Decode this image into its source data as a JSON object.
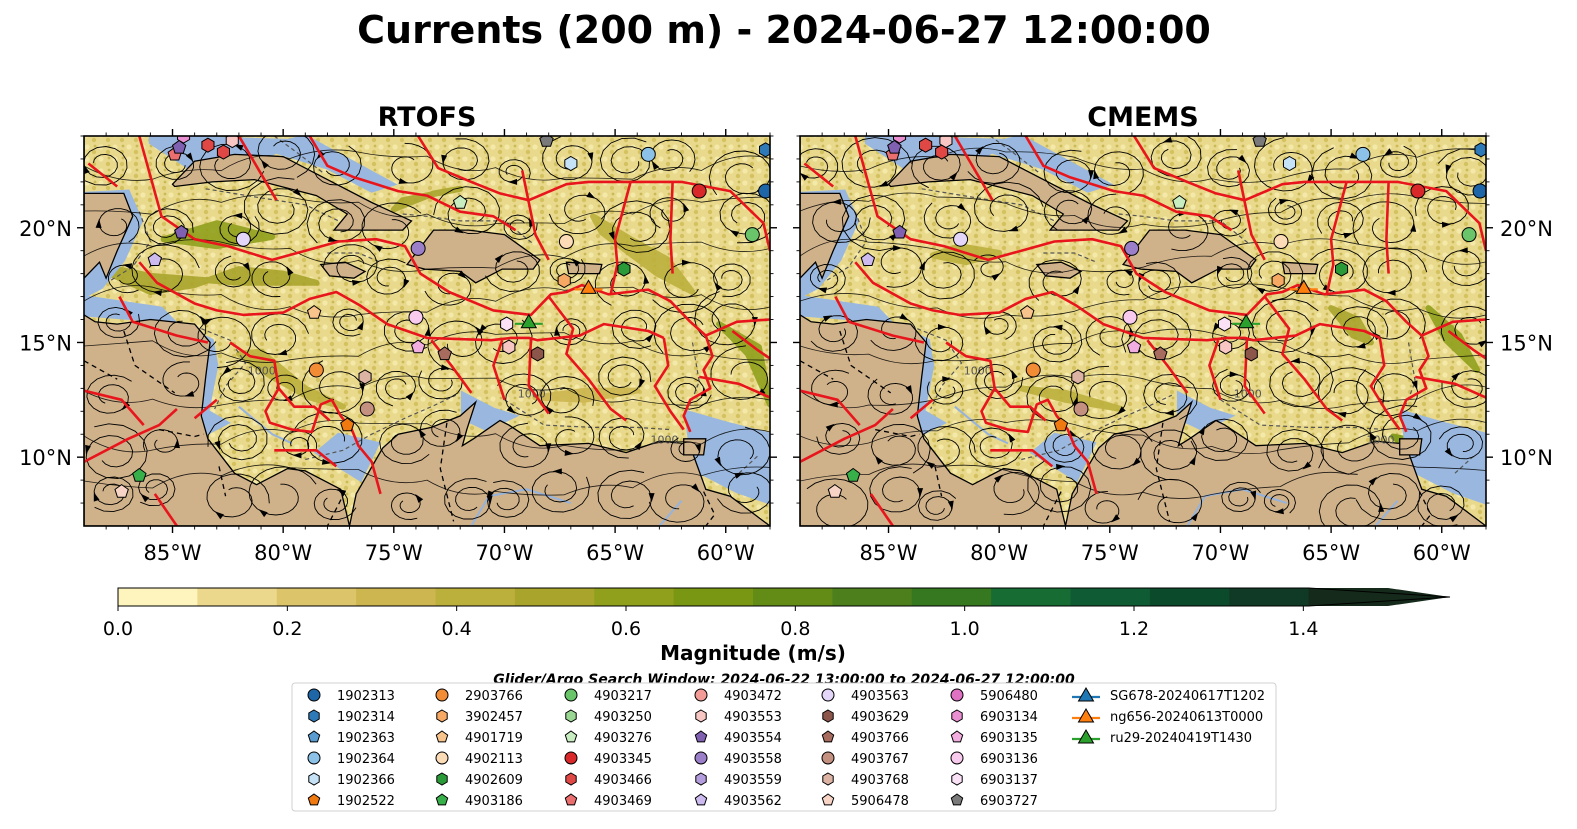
{
  "figure": {
    "title": "Currents (200 m) - 2024-06-27 12:00:00",
    "search_window": "Glider/Argo Search Window: 2024-06-22 13:00:00 to 2024-06-27 12:00:00"
  },
  "chart_data": [
    {
      "type": "heatmap",
      "title": "RTOFS",
      "variable": "current speed at 200 m",
      "xlim": [
        -89,
        -58
      ],
      "ylim": [
        7,
        24
      ],
      "x_ticks": [
        "85°W",
        "80°W",
        "75°W",
        "70°W",
        "65°W",
        "60°W"
      ],
      "y_ticks": [
        "20°N",
        "15°N",
        "10°N"
      ],
      "overlays": [
        "streamlines",
        "EEZ boundaries (red)",
        "1000 m isobath (dashed)"
      ],
      "isobath_label": "1000"
    },
    {
      "type": "heatmap",
      "title": "CMEMS",
      "variable": "current speed at 200 m",
      "xlim": [
        -89,
        -58
      ],
      "ylim": [
        7,
        24
      ],
      "x_ticks": [
        "85°W",
        "80°W",
        "75°W",
        "70°W",
        "65°W",
        "60°W"
      ],
      "y_ticks": [
        "20°N",
        "15°N",
        "10°N"
      ],
      "overlays": [
        "streamlines",
        "EEZ boundaries (red)",
        "1000 m isobath (dashed)"
      ],
      "isobath_label": "1000"
    }
  ],
  "colorbar": {
    "label": "Magnitude (m/s)",
    "min": 0.0,
    "max": 1.5,
    "step": 0.1,
    "extend": "max",
    "ticks": [
      "0.0",
      "0.2",
      "0.4",
      "0.6",
      "0.8",
      "1.0",
      "1.2",
      "1.4"
    ],
    "tick_values": [
      0.0,
      0.2,
      0.4,
      0.6,
      0.8,
      1.0,
      1.2,
      1.4
    ],
    "colors": [
      "#fdf5bd",
      "#ecd88c",
      "#dcc46a",
      "#cdb650",
      "#bcb03d",
      "#a9a52c",
      "#90a01d",
      "#7a9714",
      "#638c16",
      "#4d801c",
      "#367820",
      "#166c33",
      "#0f5b33",
      "#0c4a2c",
      "#103a25",
      "#152a1b"
    ]
  },
  "legend": [
    {
      "label": "1902313",
      "marker": "circle",
      "color": "#1f66a8"
    },
    {
      "label": "1902314",
      "marker": "hexagon",
      "color": "#2e7ab8"
    },
    {
      "label": "1902363",
      "marker": "pentagon",
      "color": "#5a9bd0"
    },
    {
      "label": "1902364",
      "marker": "circle",
      "color": "#8cc1e8"
    },
    {
      "label": "1902366",
      "marker": "hexagon",
      "color": "#c6e2f7"
    },
    {
      "label": "1902522",
      "marker": "pentagon",
      "color": "#f07a10"
    },
    {
      "label": "2903766",
      "marker": "circle",
      "color": "#f28d35"
    },
    {
      "label": "3902457",
      "marker": "hexagon",
      "color": "#f7a863"
    },
    {
      "label": "4901719",
      "marker": "pentagon",
      "color": "#f9c48c"
    },
    {
      "label": "4902113",
      "marker": "circle",
      "color": "#fbdcb7"
    },
    {
      "label": "4902609",
      "marker": "hexagon",
      "color": "#2a9a38"
    },
    {
      "label": "4903186",
      "marker": "pentagon",
      "color": "#38b04a"
    },
    {
      "label": "4903217",
      "marker": "circle",
      "color": "#69c46a"
    },
    {
      "label": "4903250",
      "marker": "hexagon",
      "color": "#9ad793"
    },
    {
      "label": "4903276",
      "marker": "pentagon",
      "color": "#c8edc1"
    },
    {
      "label": "4903345",
      "marker": "circle",
      "color": "#d8282a"
    },
    {
      "label": "4903466",
      "marker": "hexagon",
      "color": "#e04846"
    },
    {
      "label": "4903469",
      "marker": "pentagon",
      "color": "#ec6f70"
    },
    {
      "label": "4903472",
      "marker": "circle",
      "color": "#f29b97"
    },
    {
      "label": "4903553",
      "marker": "hexagon",
      "color": "#f8c6c3"
    },
    {
      "label": "4903554",
      "marker": "pentagon",
      "color": "#8060b0"
    },
    {
      "label": "4903558",
      "marker": "circle",
      "color": "#9b7fc8"
    },
    {
      "label": "4903559",
      "marker": "hexagon",
      "color": "#b49ddc"
    },
    {
      "label": "4903562",
      "marker": "pentagon",
      "color": "#cdbbef"
    },
    {
      "label": "4903563",
      "marker": "circle",
      "color": "#e4d6f8"
    },
    {
      "label": "4903629",
      "marker": "hexagon",
      "color": "#8c564b"
    },
    {
      "label": "4903766",
      "marker": "pentagon",
      "color": "#a86c5e"
    },
    {
      "label": "4903767",
      "marker": "circle",
      "color": "#c4907f"
    },
    {
      "label": "4903768",
      "marker": "hexagon",
      "color": "#ddb3a4"
    },
    {
      "label": "5906478",
      "marker": "pentagon",
      "color": "#f7d4c6"
    },
    {
      "label": "5906480",
      "marker": "circle",
      "color": "#e072c3"
    },
    {
      "label": "6903134",
      "marker": "hexagon",
      "color": "#ea8fd2"
    },
    {
      "label": "6903135",
      "marker": "pentagon",
      "color": "#f2aee0"
    },
    {
      "label": "6903136",
      "marker": "circle",
      "color": "#f8cbee"
    },
    {
      "label": "6903137",
      "marker": "hexagon",
      "color": "#fbe1f6"
    },
    {
      "label": "6903727",
      "marker": "pentagon",
      "color": "#7a7a7a"
    },
    {
      "label": "SG678-20240617T1202",
      "marker": "triangle-line",
      "color": "#1f77b4"
    },
    {
      "label": "ng656-20240613T0000",
      "marker": "triangle-line",
      "color": "#ff7f0e"
    },
    {
      "label": "ru29-20240419T1430",
      "marker": "triangle-line",
      "color": "#2ca02c"
    }
  ],
  "markers_on_map": [
    {
      "id": "1902313",
      "lon": -58.2,
      "lat": 21.6
    },
    {
      "id": "1902314",
      "lon": -58.2,
      "lat": 23.4
    },
    {
      "id": "1902364",
      "lon": -63.5,
      "lat": 23.2
    },
    {
      "id": "1902366",
      "lon": -67.0,
      "lat": 22.8
    },
    {
      "id": "4903217",
      "lon": -58.8,
      "lat": 19.7
    },
    {
      "id": "4903345",
      "lon": -61.2,
      "lat": 21.6
    },
    {
      "id": "4903563",
      "lon": -81.8,
      "lat": 19.5
    },
    {
      "id": "4903558",
      "lon": -73.9,
      "lat": 19.1
    },
    {
      "id": "4903554",
      "lon": -84.6,
      "lat": 19.8
    },
    {
      "id": "4903562",
      "lon": -85.8,
      "lat": 18.6
    },
    {
      "id": "4902113",
      "lon": -67.2,
      "lat": 19.4
    },
    {
      "id": "4902609",
      "lon": -64.6,
      "lat": 18.2
    },
    {
      "id": "2903766",
      "lon": -78.5,
      "lat": 13.8
    },
    {
      "id": "1902522",
      "lon": -77.1,
      "lat": 11.4
    },
    {
      "id": "4901719",
      "lon": -78.6,
      "lat": 16.3
    },
    {
      "id": "6903136",
      "lon": -74.0,
      "lat": 16.1
    },
    {
      "id": "6903135",
      "lon": -73.9,
      "lat": 14.8
    },
    {
      "id": "4903766",
      "lon": -72.7,
      "lat": 14.5
    },
    {
      "id": "4903767",
      "lon": -76.2,
      "lat": 12.1
    },
    {
      "id": "4903768",
      "lon": -76.3,
      "lat": 13.5
    },
    {
      "id": "4903629",
      "lon": -68.5,
      "lat": 14.5
    },
    {
      "id": "4903553",
      "lon": -69.8,
      "lat": 14.8
    },
    {
      "id": "6903137",
      "lon": -69.9,
      "lat": 15.8
    },
    {
      "id": "3902457",
      "lon": -67.3,
      "lat": 17.7
    },
    {
      "id": "4903186",
      "lon": -86.5,
      "lat": 9.2
    },
    {
      "id": "5906478",
      "lon": -87.3,
      "lat": 8.5
    },
    {
      "id": "4903276",
      "lon": -72.0,
      "lat": 21.1
    },
    {
      "id": "6903727",
      "lon": -68.1,
      "lat": 23.8
    },
    {
      "id": "4903469",
      "lon": -84.9,
      "lat": 23.2
    },
    {
      "id": "4903554b",
      "lon": -84.7,
      "lat": 23.5
    },
    {
      "id": "4903466",
      "lon": -83.4,
      "lat": 23.6
    },
    {
      "id": "4903466b",
      "lon": -82.7,
      "lat": 23.3
    },
    {
      "id": "6903134",
      "lon": -84.5,
      "lat": 24.0
    },
    {
      "id": "4903553b",
      "lon": -82.3,
      "lat": 23.8
    },
    {
      "id": "ng656-20240613T0000",
      "lon": -66.2,
      "lat": 17.4
    },
    {
      "id": "ru29-20240419T1430",
      "lon": -68.9,
      "lat": 15.9
    }
  ]
}
